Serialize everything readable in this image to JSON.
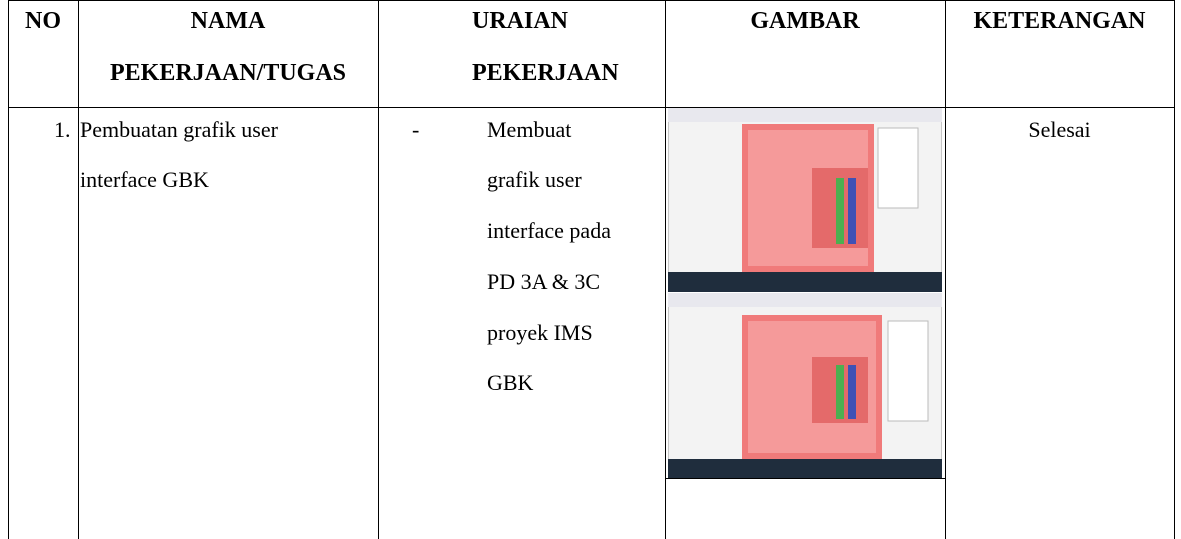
{
  "table": {
    "header": [
      {
        "lines": [
          "NO"
        ]
      },
      {
        "lines": [
          "NAMA",
          "PEKERJAAN/TUGAS"
        ]
      },
      {
        "lines": [
          "URAIAN",
          "PEKERJAAN"
        ]
      },
      {
        "lines": [
          "GAMBAR"
        ]
      },
      {
        "lines": [
          "KETERANGAN"
        ]
      }
    ],
    "rows": [
      {
        "no": "1.",
        "name_lines": [
          "Pembuatan grafik user",
          "interface GBK"
        ],
        "description": {
          "bullet": "-",
          "lines": [
            "Membuat",
            "grafik user",
            "interface pada",
            "PD 3A & 3C",
            "proyek IMS",
            "GBK"
          ]
        },
        "status": "Selesai"
      }
    ]
  }
}
